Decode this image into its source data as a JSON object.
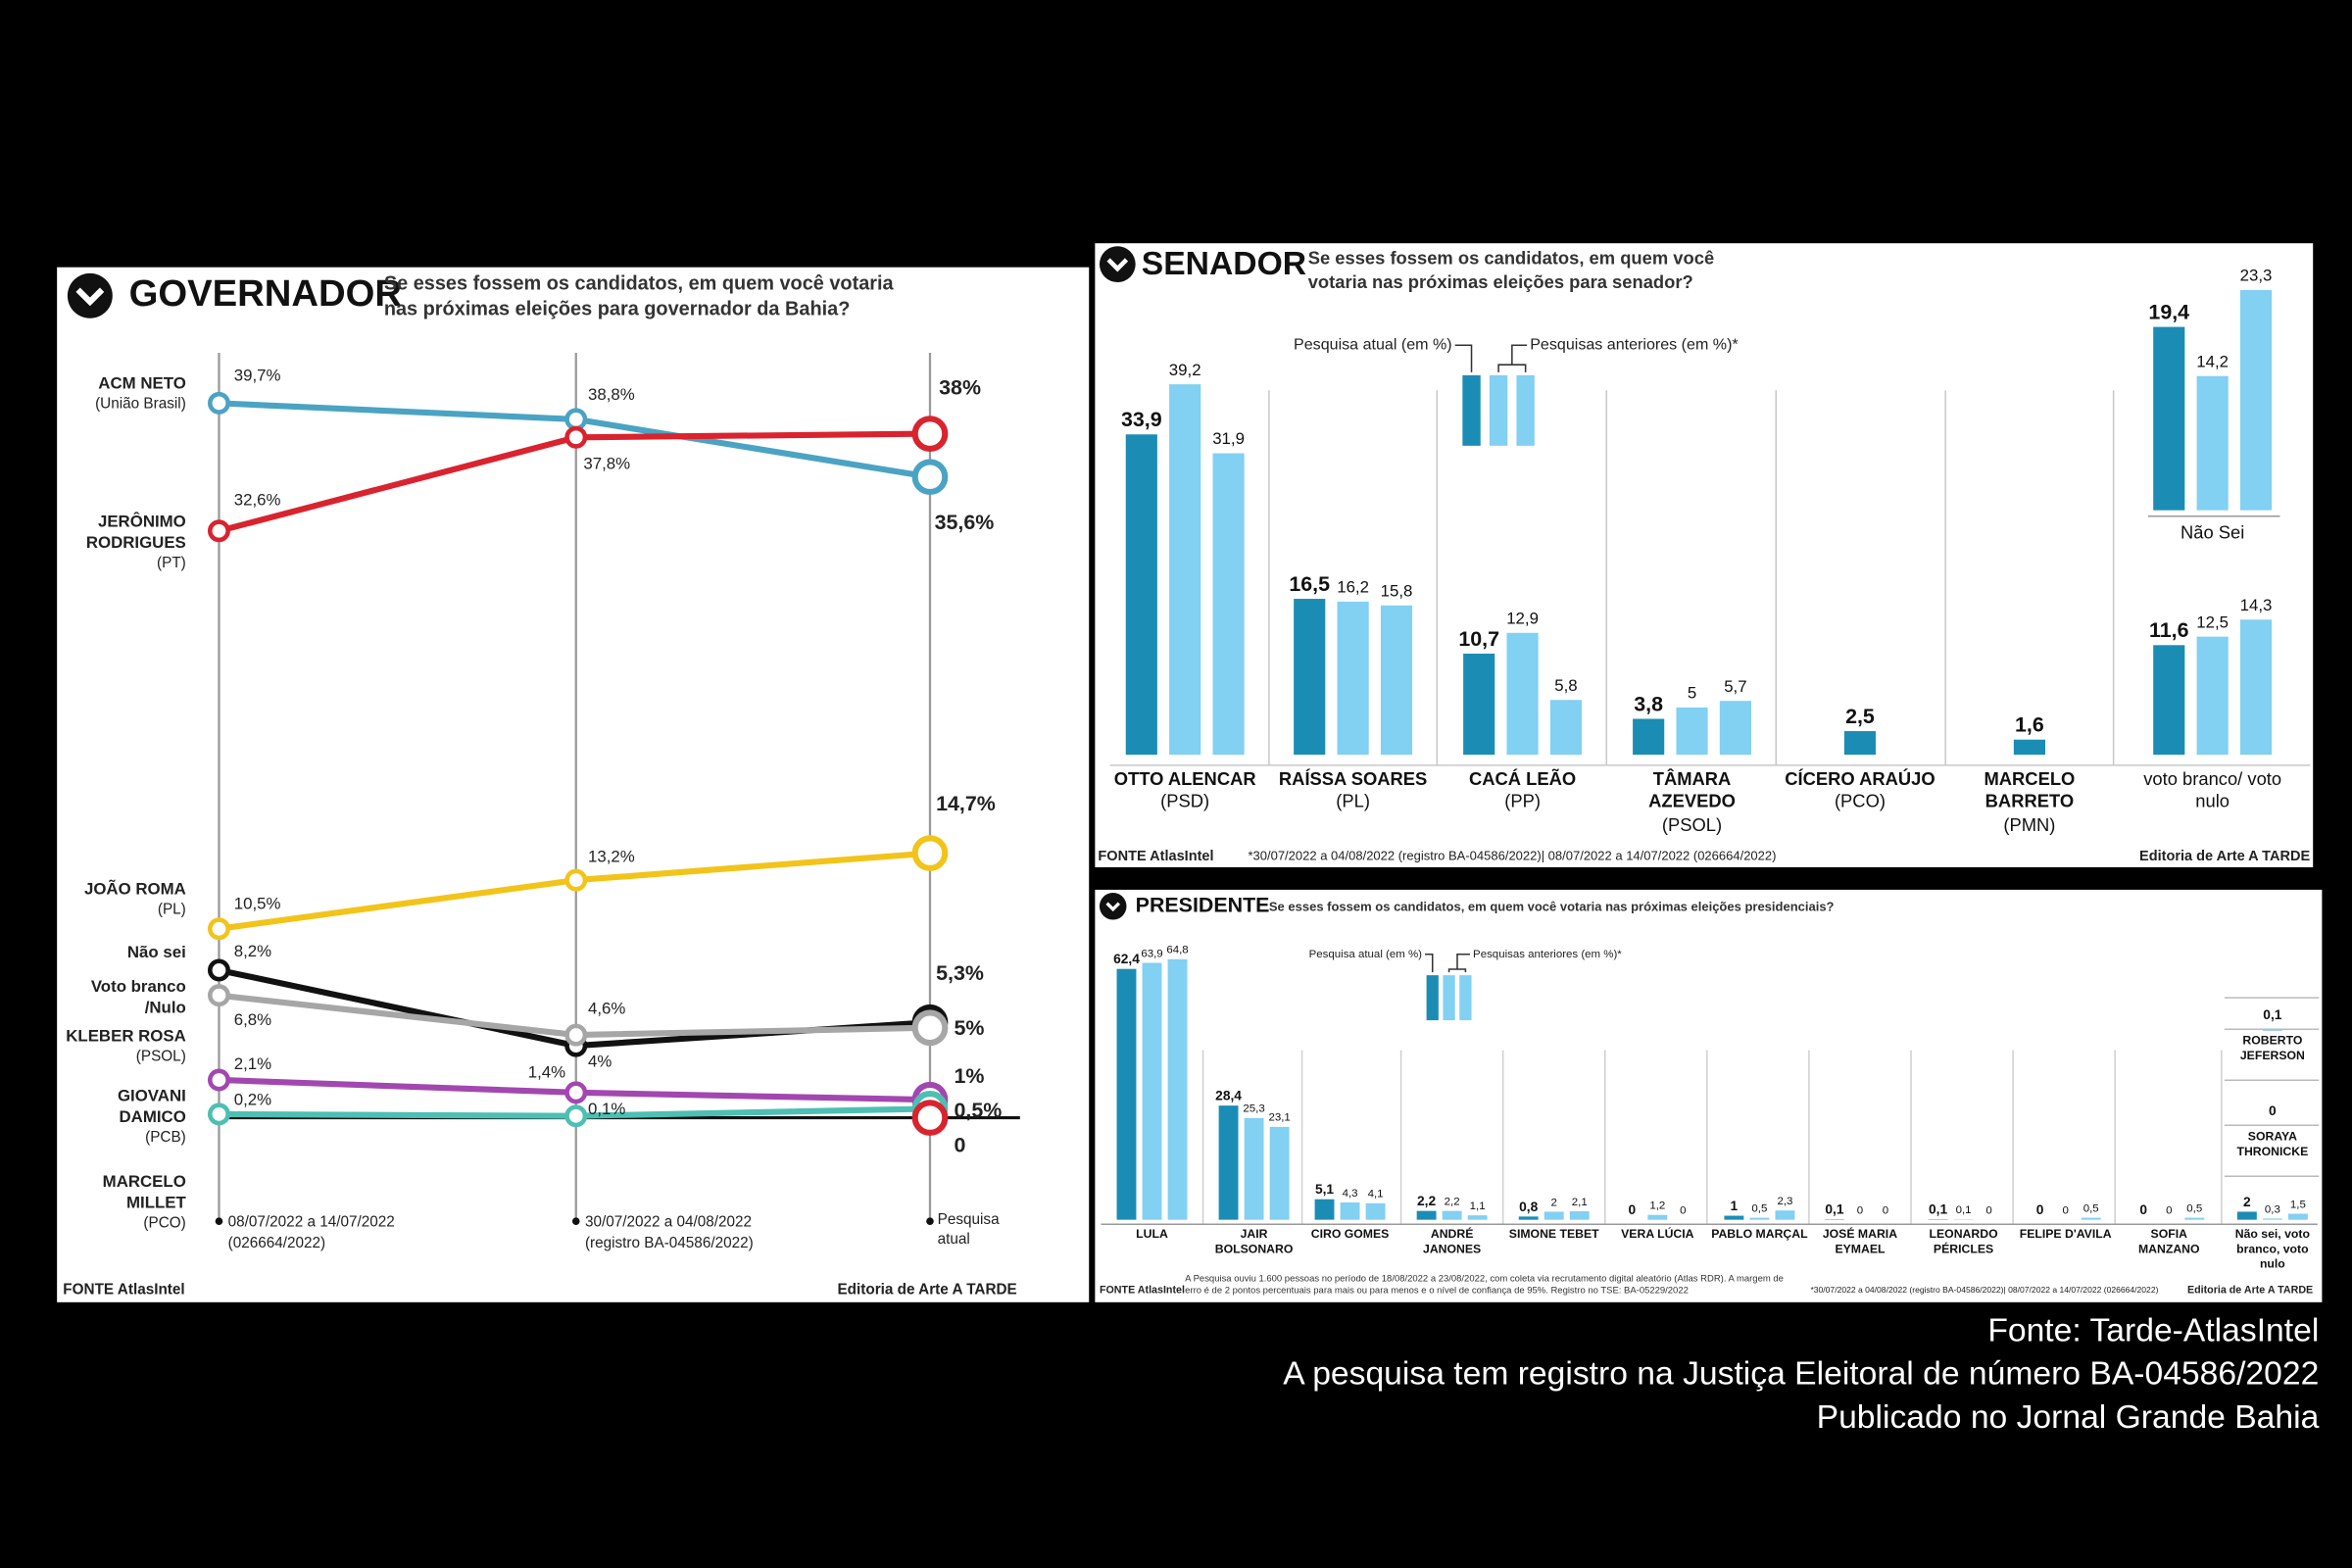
{
  "chart_data": [
    {
      "type": "line",
      "title": "GOVERNADOR",
      "subtitle": "Se esses fossem os candidatos, em quem você votaria nas próximas eleições para governador da Bahia?",
      "categories": [
        "08/07/2022 a 14/07/2022",
        "30/07/2022 a 04/08/2022",
        "Pesquisa atual"
      ],
      "category_notes": [
        "(026664/2022)",
        "(registro BA-04586/2022)",
        null
      ],
      "ylim": [
        0,
        40
      ],
      "series": [
        {
          "name": "ACM NETO",
          "party": "(União Brasil)",
          "color": "#4ba3c3",
          "values": [
            39.7,
            38.8,
            35.6
          ],
          "value_labels": [
            "39,7%",
            "38,8%",
            "35,6%"
          ]
        },
        {
          "name": "JERÔNIMO RODRIGUES",
          "party": "(PT)",
          "color": "#d9232e",
          "values": [
            32.6,
            37.8,
            38
          ],
          "value_labels": [
            "32,6%",
            "37,8%",
            "38%"
          ]
        },
        {
          "name": "JOÃO ROMA",
          "party": "(PL)",
          "color": "#f2c41a",
          "values": [
            10.5,
            13.2,
            14.7
          ],
          "value_labels": [
            "10,5%",
            "13,2%",
            "14,7%"
          ]
        },
        {
          "name": "Não sei",
          "party": null,
          "color": "#111111",
          "values": [
            8.2,
            4,
            5.3
          ],
          "value_labels": [
            "8,2%",
            "4%",
            "5,3%"
          ]
        },
        {
          "name": "Voto branco /Nulo",
          "party": null,
          "color": "#a6a6a6",
          "values": [
            6.8,
            4.6,
            5
          ],
          "value_labels": [
            "6,8%",
            "4,6%",
            "5%"
          ]
        },
        {
          "name": "KLEBER ROSA",
          "party": "(PSOL)",
          "color": "#a347b0",
          "values": [
            2.1,
            1.4,
            1
          ],
          "value_labels": [
            "2,1%",
            "1,4%",
            "1%"
          ]
        },
        {
          "name": "GIOVANI DAMICO",
          "party": "(PCB)",
          "color": "#4dbfb3",
          "values": [
            0.2,
            0.1,
            0.5
          ],
          "value_labels": [
            "0,2%",
            "0,1%",
            "0,5%"
          ]
        },
        {
          "name": "MARCELO MILLET",
          "party": "(PCO)",
          "color": "#d9232e",
          "values": [
            null,
            null,
            0
          ],
          "value_labels": [
            null,
            null,
            "0"
          ]
        }
      ],
      "source": "FONTE AtlasIntel",
      "credit": "Editoria de Arte A TARDE"
    },
    {
      "type": "grouped-bar",
      "title": "SENADOR",
      "subtitle": "Se esses fossem os candidatos, em quem você votaria nas próximas eleições para senador?",
      "categories": [
        "OTTO ALENCAR",
        "RAÍSSA SOARES",
        "CACÁ LEÃO",
        "TÂMARA AZEVEDO",
        "CÍCERO ARAÚJO",
        "MARCELO BARRETO",
        "Não Sei",
        "voto branco/ voto nulo"
      ],
      "category_notes": [
        "(PSD)",
        "(PL)",
        "(PP)",
        "(PSOL)",
        "(PCO)",
        "(PMN)",
        null,
        null
      ],
      "ylim": [
        0,
        40
      ],
      "series": [
        {
          "name": "Pesquisa atual (em %)",
          "color": "#1b8db5",
          "values": [
            33.9,
            16.5,
            10.7,
            3.8,
            2.5,
            1.6,
            19.4,
            11.6
          ],
          "value_labels": [
            "33,9",
            "16,5",
            "10,7",
            "3,8",
            "2,5",
            "1,6",
            "19,4",
            "11,6"
          ]
        },
        {
          "name": "Pesquisas anteriores (em %)*",
          "color": "#82d0f2",
          "values": [
            39.2,
            16.2,
            12.9,
            5,
            null,
            null,
            14.2,
            12.5
          ],
          "value_labels": [
            "39,2",
            "16,2",
            "12,9",
            "5",
            null,
            null,
            "14,2",
            "12,5"
          ]
        },
        {
          "color": "#82d0f2",
          "values": [
            31.9,
            15.8,
            5.8,
            5.7,
            null,
            null,
            23.3,
            14.3
          ],
          "value_labels": [
            "31,9",
            "15,8",
            "5,8",
            "5,7",
            null,
            null,
            "23,3",
            "14,3"
          ]
        }
      ],
      "source": "FONTE AtlasIntel",
      "footnote": "*30/07/2022 a 04/08/2022 (registro BA-04586/2022)| 08/07/2022 a 14/07/2022 (026664/2022)",
      "credit": "Editoria de Arte A TARDE"
    },
    {
      "type": "grouped-bar",
      "title": "PRESIDENTE",
      "subtitle": "Se esses fossem os candidatos, em quem você votaria nas próximas eleições presidenciais?",
      "categories": [
        "LULA",
        "JAIR BOLSONARO",
        "CIRO GOMES",
        "ANDRÉ JANONES",
        "SIMONE TEBET",
        "VERA LÚCIA",
        "PABLO MARÇAL",
        "JOSÉ MARIA EYMAEL",
        "LEONARDO PÉRICLES",
        "FELIPE D'AVILA",
        "SOFIA MANZANO",
        "Não sei, voto branco, voto nulo",
        "ROBERTO JEFERSON",
        "SORAYA THRONICKE"
      ],
      "ylim": [
        0,
        70
      ],
      "series": [
        {
          "name": "Pesquisa atual (em %)",
          "color": "#1b8db5",
          "values": [
            62.4,
            28.4,
            5.1,
            2.2,
            0.8,
            0,
            1,
            0.1,
            0.1,
            0,
            0,
            2,
            0.1,
            0
          ],
          "value_labels": [
            "62,4",
            "28,4",
            "5,1",
            "2,2",
            "0,8",
            "0",
            "1",
            "0,1",
            "0,1",
            "0",
            "0",
            "2",
            "0,1",
            "0"
          ]
        },
        {
          "name": "Pesquisas anteriores (em %)*",
          "color": "#82d0f2",
          "values": [
            63.9,
            25.3,
            4.3,
            2.2,
            2,
            1.2,
            0.5,
            0,
            0.1,
            0,
            0,
            0.3,
            null,
            null
          ],
          "value_labels": [
            "63,9",
            "25,3",
            "4,3",
            "2,2",
            "2",
            "1,2",
            "0,5",
            "0",
            "0,1",
            "0",
            "0",
            "0,3",
            null,
            null
          ]
        },
        {
          "color": "#82d0f2",
          "values": [
            64.8,
            23.1,
            4.1,
            1.1,
            2.1,
            0,
            2.3,
            0,
            0,
            0.5,
            0.5,
            1.5,
            null,
            null
          ],
          "value_labels": [
            "64,8",
            "23,1",
            "4,1",
            "1,1",
            "2,1",
            "0",
            "2,3",
            "0",
            "0",
            "0,5",
            "0,5",
            "1,5",
            null,
            null
          ]
        }
      ],
      "source": "FONTE AtlasIntel",
      "method_note": "A Pesquisa ouviu 1.600 pessoas no período de 18/08/2022 a 23/08/2022, com coleta via recrutamento digital aleatório (Atlas RDR). A margem de erro é de 2 pontos percentuais para mais ou para menos e o nível de confiança de 95%. Registro no TSE: BA-05229/2022",
      "footnote": "*30/07/2022 a 04/08/2022 (registro BA-04586/2022)| 08/07/2022 a 14/07/2022 (026664/2022)",
      "credit": "Editoria de Arte A TARDE"
    }
  ],
  "caption": [
    "Fonte: Tarde-AtlasIntel",
    "A pesquisa tem registro na Justiça Eleitoral de número BA-04586/2022",
    "Publicado no Jornal Grande Bahia"
  ]
}
